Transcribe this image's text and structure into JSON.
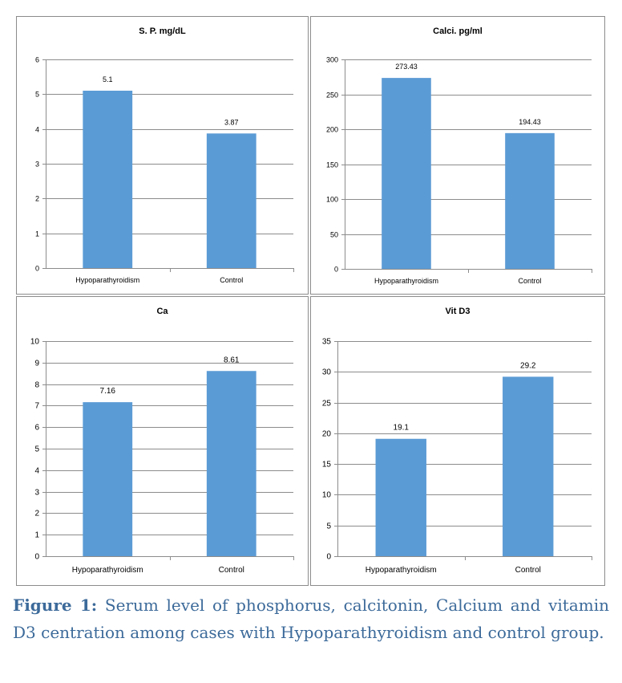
{
  "chart_data": [
    {
      "type": "bar",
      "title": "S. P. mg/dL",
      "categories": [
        "Hypoparathyroidism",
        "Control"
      ],
      "values": [
        5.1,
        3.87
      ],
      "value_labels": [
        "5.1",
        "3.87"
      ],
      "ylim": [
        0,
        6
      ],
      "yticks": [
        0,
        1,
        2,
        3,
        4,
        5,
        6
      ],
      "grid": true,
      "bar_color": "#5b9bd5"
    },
    {
      "type": "bar",
      "title": "Calci. pg/ml",
      "categories": [
        "Hypoparathyroidism",
        "Control"
      ],
      "values": [
        273.43,
        194.43
      ],
      "value_labels": [
        "273.43",
        "194.43"
      ],
      "ylim": [
        0,
        300
      ],
      "yticks": [
        0,
        50,
        100,
        150,
        200,
        250,
        300
      ],
      "grid": true,
      "bar_color": "#5b9bd5"
    },
    {
      "type": "bar",
      "title": "Ca",
      "categories": [
        "Hypoparathyroidism",
        "Control"
      ],
      "values": [
        7.16,
        8.61
      ],
      "value_labels": [
        "7.16",
        "8.61"
      ],
      "ylim": [
        0,
        10
      ],
      "yticks": [
        0,
        1,
        2,
        3,
        4,
        5,
        6,
        7,
        8,
        9,
        10
      ],
      "grid": true,
      "bar_color": "#5b9bd5"
    },
    {
      "type": "bar",
      "title": "Vit D3",
      "categories": [
        "Hypoparathyroidism",
        "Control"
      ],
      "values": [
        19.1,
        29.2
      ],
      "value_labels": [
        "19.1",
        "29.2"
      ],
      "ylim": [
        0,
        35
      ],
      "yticks": [
        0,
        5,
        10,
        15,
        20,
        25,
        30,
        35
      ],
      "grid": true,
      "bar_color": "#5b9bd5"
    }
  ],
  "caption": {
    "lead": "Figure 1:",
    "text": "Serum level of phosphorus, calcitonin, Calcium and vitamin D3 centration among cases with Hypoparathyroidism and control group."
  }
}
